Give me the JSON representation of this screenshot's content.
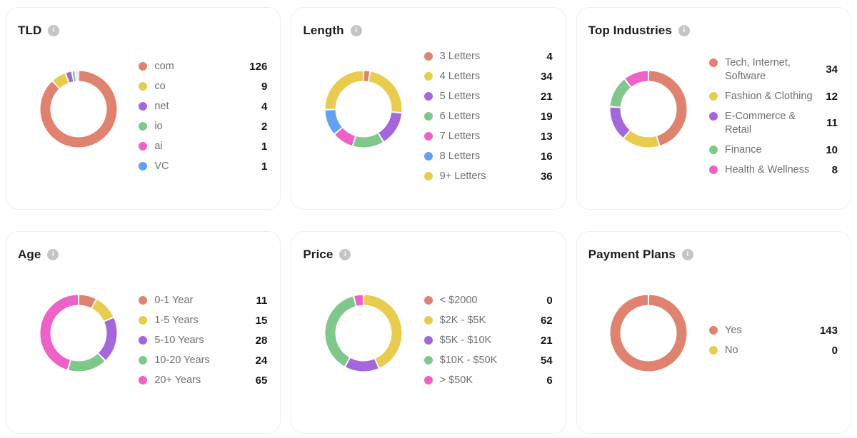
{
  "icons": {
    "info_glyph": "i"
  },
  "colors": {
    "salmon": "#E08270",
    "yellow": "#E9CB4D",
    "purple": "#A566DB",
    "green": "#80C78B",
    "pink": "#EE61C6",
    "blue": "#62A0F2",
    "card_border": "#EFEFEF",
    "label_text": "#6F6F6F",
    "value_text": "#151515",
    "title_text": "#1C1C1C",
    "info_icon_bg": "#C5C5C5"
  },
  "cards": [
    {
      "title": "TLD"
    },
    {
      "title": "Length"
    },
    {
      "title": "Top Industries"
    },
    {
      "title": "Age"
    },
    {
      "title": "Price"
    },
    {
      "title": "Payment Plans"
    }
  ],
  "chart_data": [
    {
      "type": "pie",
      "subtype": "donut",
      "title": "TLD",
      "legend_position": "right",
      "start_angle": "top",
      "direction": "clockwise",
      "categories": [
        "com",
        "co",
        "net",
        "io",
        "ai",
        "VC"
      ],
      "values": [
        126,
        9,
        4,
        2,
        1,
        1
      ],
      "colors": [
        "#E08270",
        "#E9CB4D",
        "#A566DB",
        "#80C78B",
        "#EE61C6",
        "#62A0F2"
      ]
    },
    {
      "type": "pie",
      "subtype": "donut",
      "title": "Length",
      "legend_position": "right",
      "start_angle": "top",
      "direction": "clockwise",
      "categories": [
        "3 Letters",
        "4 Letters",
        "5 Letters",
        "6 Letters",
        "7 Letters",
        "8 Letters",
        "9+ Letters"
      ],
      "values": [
        4,
        34,
        21,
        19,
        13,
        16,
        36
      ],
      "colors": [
        "#E08270",
        "#E9CB4D",
        "#A566DB",
        "#80C78B",
        "#EE61C6",
        "#62A0F2",
        "#E9CB4D"
      ]
    },
    {
      "type": "pie",
      "subtype": "donut",
      "title": "Top Industries",
      "legend_position": "right",
      "start_angle": "top",
      "direction": "clockwise",
      "categories": [
        "Tech, Internet, Software",
        "Fashion & Clothing",
        "E-Commerce & Retail",
        "Finance",
        "Health & Wellness"
      ],
      "values": [
        34,
        12,
        11,
        10,
        8
      ],
      "colors": [
        "#E08270",
        "#E9CB4D",
        "#A566DB",
        "#80C78B",
        "#EE61C6"
      ]
    },
    {
      "type": "pie",
      "subtype": "donut",
      "title": "Age",
      "legend_position": "right",
      "start_angle": "top",
      "direction": "clockwise",
      "categories": [
        "0-1 Year",
        "1-5 Years",
        "5-10 Years",
        "10-20 Years",
        "20+ Years"
      ],
      "values": [
        11,
        15,
        28,
        24,
        65
      ],
      "colors": [
        "#E08270",
        "#E9CB4D",
        "#A566DB",
        "#80C78B",
        "#EE61C6"
      ]
    },
    {
      "type": "pie",
      "subtype": "donut",
      "title": "Price",
      "legend_position": "right",
      "start_angle": "top",
      "direction": "clockwise",
      "categories": [
        "< $2000",
        "$2K - $5K",
        "$5K - $10K",
        "$10K - $50K",
        "> $50K"
      ],
      "values": [
        0,
        62,
        21,
        54,
        6
      ],
      "colors": [
        "#E08270",
        "#E9CB4D",
        "#A566DB",
        "#80C78B",
        "#EE61C6"
      ]
    },
    {
      "type": "pie",
      "subtype": "donut",
      "title": "Payment Plans",
      "legend_position": "right",
      "start_angle": "top",
      "direction": "clockwise",
      "categories": [
        "Yes",
        "No"
      ],
      "values": [
        143,
        0
      ],
      "colors": [
        "#E08270",
        "#E9CB4D"
      ]
    }
  ]
}
